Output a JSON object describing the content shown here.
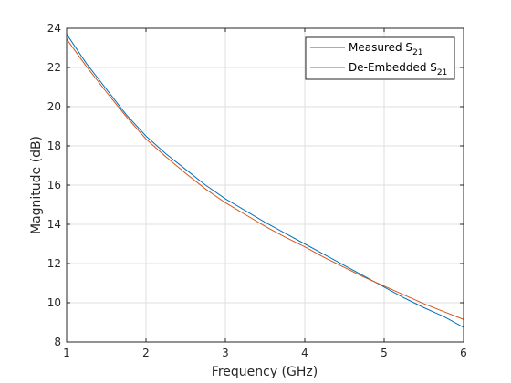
{
  "chart_data": {
    "type": "line",
    "title": "",
    "xlabel": "Frequency (GHz)",
    "ylabel": "Magnitude (dB)",
    "xlim": [
      1,
      6
    ],
    "ylim": [
      8,
      24
    ],
    "xticks": [
      1,
      2,
      3,
      4,
      5,
      6
    ],
    "yticks": [
      8,
      10,
      12,
      14,
      16,
      18,
      20,
      22,
      24
    ],
    "grid": true,
    "legend": "top-right",
    "series": [
      {
        "name": "Measured S",
        "subscript": "21",
        "color": "#0072BD",
        "x": [
          1.0,
          1.25,
          1.5,
          1.75,
          2.0,
          2.25,
          2.5,
          2.75,
          3.0,
          3.25,
          3.5,
          3.75,
          4.0,
          4.25,
          4.5,
          4.75,
          5.0,
          5.25,
          5.5,
          5.75,
          6.0
        ],
        "values": [
          23.7,
          22.2,
          20.9,
          19.6,
          18.5,
          17.6,
          16.8,
          16.0,
          15.3,
          14.7,
          14.1,
          13.55,
          13.0,
          12.45,
          11.9,
          11.35,
          10.8,
          10.25,
          9.75,
          9.3,
          8.75
        ]
      },
      {
        "name": "De-Embedded S",
        "subscript": "21",
        "color": "#D95319",
        "x": [
          1.0,
          1.25,
          1.5,
          1.75,
          2.0,
          2.25,
          2.5,
          2.75,
          3.0,
          3.25,
          3.5,
          3.75,
          4.0,
          4.25,
          4.5,
          4.75,
          5.0,
          5.25,
          5.5,
          5.75,
          6.0
        ],
        "values": [
          23.45,
          22.05,
          20.75,
          19.5,
          18.35,
          17.45,
          16.6,
          15.8,
          15.1,
          14.5,
          13.9,
          13.35,
          12.85,
          12.3,
          11.8,
          11.3,
          10.85,
          10.4,
          9.95,
          9.55,
          9.15
        ]
      }
    ]
  },
  "colors": {
    "axis": "#262626",
    "grid": "#dfdfdf",
    "legend_border": "#262626",
    "background": "#ffffff"
  }
}
